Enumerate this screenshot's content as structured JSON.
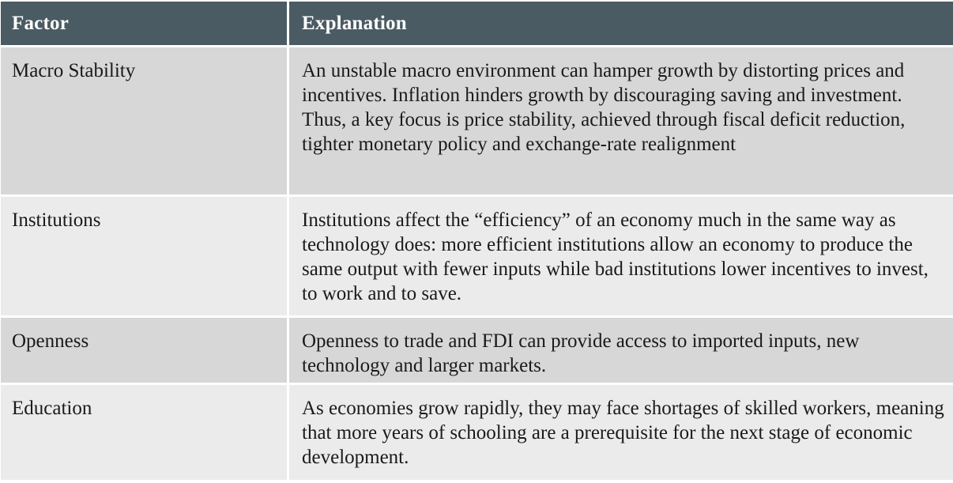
{
  "table": {
    "headers": {
      "factor": "Factor",
      "explanation": "Explanation"
    },
    "rows": [
      {
        "factor": "Macro Stability",
        "explanation": "An unstable macro environment can hamper growth by distorting prices and incentives. Inflation hinders growth by discouraging saving and investment. Thus, a key focus is price stability, achieved through fiscal deficit reduction, tighter monetary policy and exchange-rate realignment"
      },
      {
        "factor": "Institutions",
        "explanation": "Institutions affect the “efficiency” of an economy much in the same way as technology does: more efficient institutions allow an economy to produce the same output with fewer inputs while bad institutions lower incentives to invest, to work and to save."
      },
      {
        "factor": "Openness",
        "explanation": "Openness to trade and FDI can provide access to imported inputs, new technology and larger markets."
      },
      {
        "factor": "Education",
        "explanation": "As economies grow rapidly, they may face shortages of skilled workers, meaning that more years of schooling are a prerequisite for the next stage of economic development."
      }
    ]
  },
  "colors": {
    "header_bg": "#4b5b63",
    "row_dark": "#d7d7d7",
    "row_light": "#ebebeb",
    "text": "#1a1a1a"
  }
}
